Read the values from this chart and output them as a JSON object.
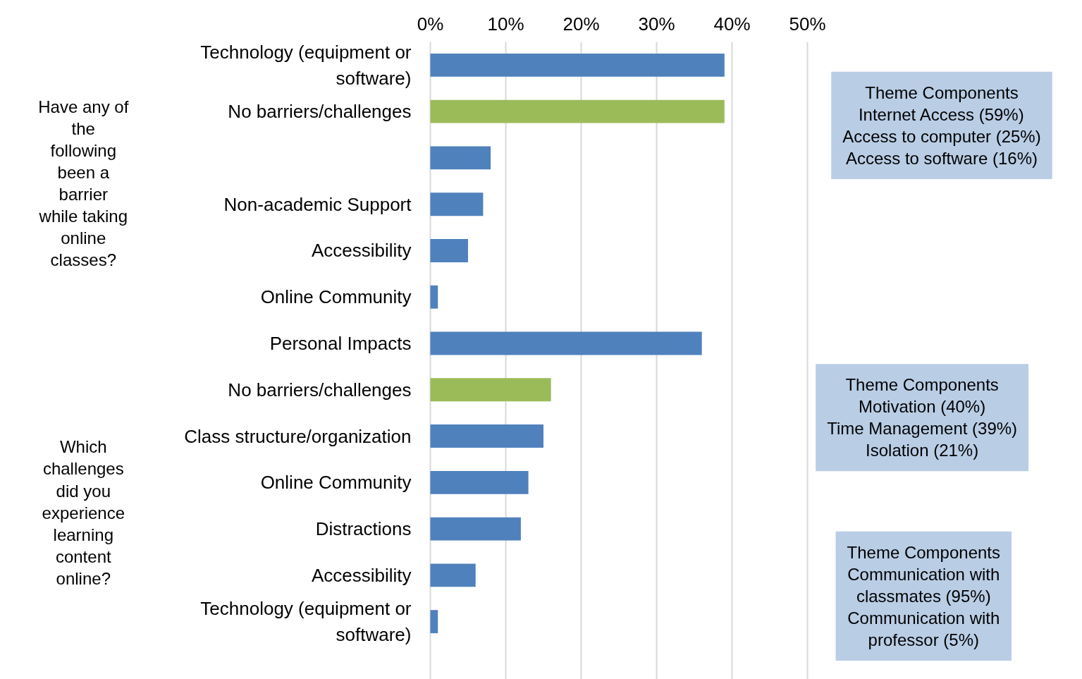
{
  "chart_data": {
    "type": "bar",
    "orientation": "horizontal",
    "categories": [
      "Technology (equipment or\nsoftware)",
      "No barriers/challenges",
      null,
      "Non-academic Support",
      "Accessibility",
      "Online Community",
      "Personal Impacts",
      "No barriers/challenges",
      "Class structure/organization",
      "Online Community",
      "Distractions",
      "Accessibility",
      "Technology (equipment or\nsoftware)"
    ],
    "values": [
      39,
      39,
      8,
      7,
      5,
      1,
      36,
      16,
      15,
      13,
      12,
      6,
      1
    ],
    "colors": [
      "#4f81bd",
      "#9bbb59",
      "#4f81bd",
      "#4f81bd",
      "#4f81bd",
      "#4f81bd",
      "#4f81bd",
      "#9bbb59",
      "#4f81bd",
      "#4f81bd",
      "#4f81bd",
      "#4f81bd",
      "#4f81bd"
    ],
    "xlim": [
      0,
      50
    ],
    "xticks": [
      {
        "value": 0,
        "label": "0%"
      },
      {
        "value": 10,
        "label": "10%"
      },
      {
        "value": 20,
        "label": "20%"
      },
      {
        "value": 30,
        "label": "30%"
      },
      {
        "value": 40,
        "label": "40%"
      },
      {
        "value": 50,
        "label": "50%"
      }
    ],
    "grid": "x",
    "annotations": [
      "Have any of\nthe\nfollowing\nbeen a\nbarrier\nwhile taking\nonline\nclasses?",
      "Which\nchallenges\ndid you\nexperience\nlearning\ncontent\nonline?",
      "Theme Components\nInternet Access (59%)\nAccess to computer (25%)\nAccess to software (16%)",
      "Theme Components\nMotivation (40%)\nTime Management (39%)\nIsolation (21%)",
      "Theme Components\nCommunication with\nclassmates (95%)\nCommunication with\nprofessor (5%)"
    ]
  }
}
